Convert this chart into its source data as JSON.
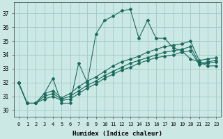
{
  "xlabel": "Humidex (Indice chaleur)",
  "bg_color": "#cce8e4",
  "grid_color": "#9eccc6",
  "line_color": "#1a6b5e",
  "xlim": [
    -0.5,
    23.5
  ],
  "ylim": [
    29.5,
    37.8
  ],
  "xticks": [
    0,
    1,
    2,
    3,
    4,
    5,
    6,
    7,
    8,
    9,
    10,
    11,
    12,
    13,
    14,
    15,
    16,
    17,
    18,
    19,
    20,
    21,
    22,
    23
  ],
  "yticks": [
    30,
    31,
    32,
    33,
    34,
    35,
    36,
    37
  ],
  "series_volatile": [
    32.0,
    30.5,
    30.5,
    31.2,
    32.3,
    30.5,
    30.5,
    33.4,
    32.0,
    35.5,
    36.5,
    36.8,
    37.2,
    37.3,
    35.2,
    36.5,
    35.2,
    35.2,
    34.5,
    34.3,
    33.7,
    33.5,
    33.2,
    33.2
  ],
  "series_linear1": [
    32.0,
    30.5,
    30.5,
    30.8,
    31.0,
    30.7,
    30.8,
    31.2,
    31.6,
    31.9,
    32.3,
    32.6,
    32.9,
    33.1,
    33.4,
    33.6,
    33.8,
    33.9,
    34.0,
    34.2,
    34.3,
    33.3,
    33.4,
    33.5
  ],
  "series_linear2": [
    32.0,
    30.5,
    30.5,
    31.0,
    31.2,
    30.8,
    31.0,
    31.4,
    31.8,
    32.1,
    32.5,
    32.8,
    33.1,
    33.4,
    33.6,
    33.8,
    34.0,
    34.2,
    34.3,
    34.4,
    34.6,
    33.4,
    33.5,
    33.6
  ],
  "series_linear3": [
    32.0,
    30.5,
    30.5,
    31.2,
    31.4,
    30.9,
    31.2,
    31.7,
    32.1,
    32.4,
    32.8,
    33.2,
    33.5,
    33.7,
    33.9,
    34.2,
    34.4,
    34.6,
    34.7,
    34.8,
    35.0,
    33.6,
    33.7,
    33.8
  ],
  "marker": "D",
  "markersize": 2.0,
  "linewidth": 0.8
}
